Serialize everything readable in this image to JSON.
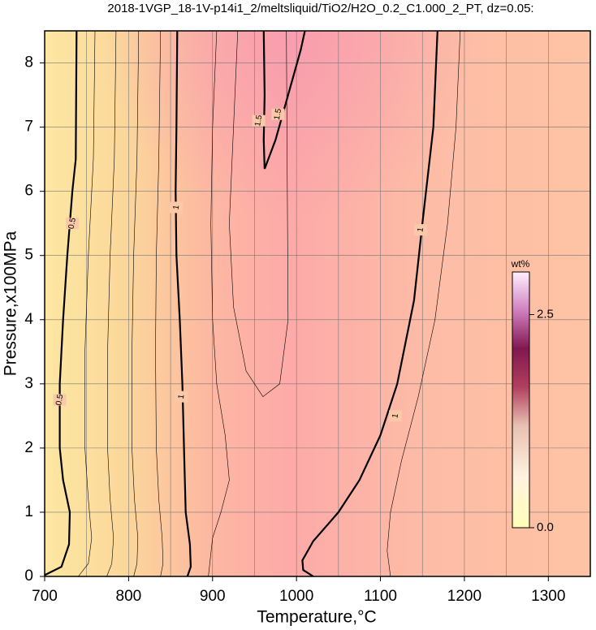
{
  "chart_data": {
    "type": "contour",
    "title": "2018-1VGP_18-1V-p14i1_2/meltsliquid/TiO2/H2O_0.2_C1.000_2_PT, dz=0.05:",
    "x_label": "Temperature,°C",
    "y_label": "Pressure,x100MPa",
    "xlim": [
      700,
      1350
    ],
    "ylim": [
      0,
      8.5
    ],
    "xticks": [
      700,
      800,
      900,
      1000,
      1100,
      1200,
      1300
    ],
    "yticks": [
      0,
      1,
      2,
      3,
      4,
      5,
      6,
      7,
      8
    ],
    "xgrid": [
      750,
      850,
      950,
      1050,
      1150,
      1250
    ],
    "grid": true,
    "contours": [
      {
        "level": 0.5,
        "x": [
          738,
          737,
          733,
          727,
          722,
          718,
          718,
          722,
          730,
          729,
          720,
          700
        ],
        "y": [
          8.5,
          6.5,
          6.0,
          5.0,
          4.0,
          3.0,
          2.0,
          1.5,
          1.0,
          0.5,
          0.15,
          0.02
        ],
        "label_x": [
          733,
          718
        ],
        "label_y": [
          5.5,
          2.75
        ]
      },
      {
        "level": 1,
        "x": [
          858,
          857,
          856,
          857,
          861,
          864,
          866,
          868,
          873,
          874,
          870
        ],
        "y": [
          8.5,
          7,
          6,
          5,
          4,
          3,
          2,
          1.0,
          0.5,
          0.15,
          0
        ],
        "label_x": [
          857,
          863
        ],
        "label_y": [
          5.75,
          2.8
        ]
      },
      {
        "level": 1,
        "x": [
          1168,
          1163,
          1150,
          1140,
          1120,
          1100,
          1075,
          1050,
          1040,
          1020,
          1007,
          1008,
          1020
        ],
        "y": [
          8.5,
          7,
          5.5,
          4.3,
          3.0,
          2.2,
          1.5,
          1.0,
          0.85,
          0.55,
          0.25,
          0.1,
          0
        ],
        "label_x": [
          1148,
          1118
        ],
        "label_y": [
          5.4,
          2.5
        ]
      },
      {
        "level": 1.5,
        "x": [
          961,
          962,
          961,
          962,
          975,
          990,
          1005,
          1010
        ],
        "y": [
          8.5,
          7.5,
          6.8,
          6.35,
          6.8,
          7.5,
          8.2,
          8.5
        ],
        "label_x": [
          955,
          978
        ],
        "label_y": [
          7.1,
          7.2
        ]
      }
    ],
    "minor_contours": [
      {
        "level": 0.6,
        "x": [
          760,
          758,
          752,
          748,
          748,
          752,
          756,
          752,
          740
        ],
        "y": [
          8.5,
          6.5,
          5,
          3.5,
          2,
          1.2,
          0.6,
          0.2,
          0
        ]
      },
      {
        "level": 0.7,
        "x": [
          785,
          783,
          778,
          775,
          775,
          778,
          782,
          780,
          774
        ],
        "y": [
          8.5,
          6.5,
          5,
          3.5,
          2,
          1.2,
          0.6,
          0.2,
          0
        ]
      },
      {
        "level": 0.8,
        "x": [
          812,
          810,
          806,
          804,
          804,
          807,
          811,
          810,
          806
        ],
        "y": [
          8.5,
          6.5,
          5,
          3.5,
          2,
          1.2,
          0.6,
          0.2,
          0
        ]
      },
      {
        "level": 0.9,
        "x": [
          838,
          836,
          833,
          832,
          833,
          836,
          840,
          841,
          838
        ],
        "y": [
          8.5,
          6.5,
          5,
          3.5,
          2,
          1.2,
          0.6,
          0.2,
          0
        ]
      },
      {
        "level": 1.1,
        "x": [
          905,
          900,
          898,
          900,
          905,
          915,
          920,
          910,
          900,
          895
        ],
        "y": [
          8.5,
          7,
          5.5,
          4,
          3,
          2.2,
          1.5,
          1.0,
          0.6,
          0
        ]
      },
      {
        "level": 1.2,
        "x": [
          930,
          925,
          920,
          925,
          940,
          960,
          980,
          990,
          988
        ],
        "y": [
          8.5,
          7,
          5.5,
          4.2,
          3.2,
          2.8,
          3.0,
          4.0,
          8.5
        ]
      },
      {
        "level": 0.9,
        "x": [
          1195,
          1190,
          1180,
          1165,
          1145,
          1125,
          1112,
          1108,
          1112
        ],
        "y": [
          8.5,
          7,
          5.5,
          4.0,
          2.8,
          1.8,
          1.0,
          0.4,
          0
        ]
      }
    ],
    "colorbar": {
      "label": "wt%",
      "lim": [
        0,
        3.0
      ],
      "ticks": [
        {
          "value": 0,
          "label": "0.0"
        },
        {
          "value": 2.5,
          "label": "2.5"
        }
      ]
    }
  }
}
